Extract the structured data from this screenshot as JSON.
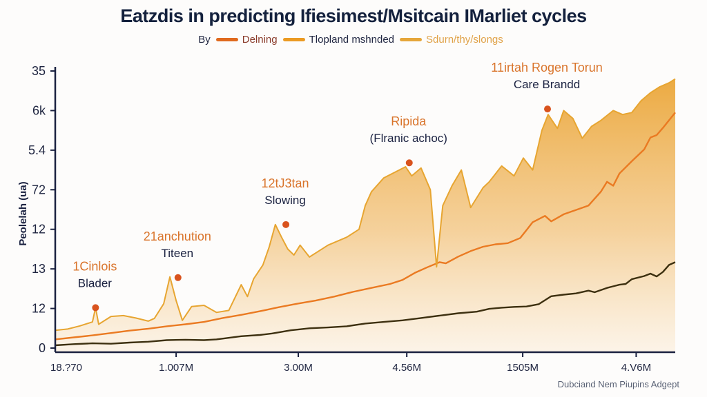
{
  "chart_data": {
    "type": "line",
    "title": "Eatzdis in predicting Ifiesimest/Msitcain IMarliet cycles",
    "legend_prefix": "By",
    "legend_position": "top-center",
    "ylabel": "Peolelah (ua)",
    "xlabel": "",
    "footer": "Dubciand Nem Piupins Adgept",
    "y_ticks": [
      "0",
      "12",
      "13",
      "12",
      "72",
      "5.4",
      "6k",
      "35"
    ],
    "y_range_index": [
      0,
      7
    ],
    "x_ticks": [
      {
        "t": 0.0,
        "label": "18.?70"
      },
      {
        "t": 0.195,
        "label": "1.007M"
      },
      {
        "t": 0.392,
        "label": "3.00M"
      },
      {
        "t": 0.567,
        "label": "4.56M"
      },
      {
        "t": 0.754,
        "label": "1505M"
      },
      {
        "t": 0.937,
        "label": "4.V6M"
      }
    ],
    "x_range": [
      0,
      1
    ],
    "grid": false,
    "series": [
      {
        "name": "Delning",
        "color": "#3d3010",
        "swatch": "#e06a1e",
        "filled": false,
        "points": [
          [
            0,
            0.07
          ],
          [
            0.03,
            0.1
          ],
          [
            0.06,
            0.12
          ],
          [
            0.09,
            0.11
          ],
          [
            0.12,
            0.14
          ],
          [
            0.15,
            0.16
          ],
          [
            0.18,
            0.2
          ],
          [
            0.21,
            0.21
          ],
          [
            0.24,
            0.2
          ],
          [
            0.26,
            0.22
          ],
          [
            0.3,
            0.3
          ],
          [
            0.33,
            0.33
          ],
          [
            0.35,
            0.37
          ],
          [
            0.38,
            0.45
          ],
          [
            0.41,
            0.5
          ],
          [
            0.44,
            0.52
          ],
          [
            0.47,
            0.55
          ],
          [
            0.5,
            0.62
          ],
          [
            0.53,
            0.66
          ],
          [
            0.56,
            0.7
          ],
          [
            0.59,
            0.76
          ],
          [
            0.62,
            0.82
          ],
          [
            0.65,
            0.88
          ],
          [
            0.68,
            0.92
          ],
          [
            0.7,
            0.99
          ],
          [
            0.72,
            1.02
          ],
          [
            0.74,
            1.04
          ],
          [
            0.76,
            1.05
          ],
          [
            0.78,
            1.11
          ],
          [
            0.8,
            1.31
          ],
          [
            0.82,
            1.35
          ],
          [
            0.84,
            1.38
          ],
          [
            0.86,
            1.45
          ],
          [
            0.87,
            1.41
          ],
          [
            0.89,
            1.52
          ],
          [
            0.91,
            1.6
          ],
          [
            0.92,
            1.62
          ],
          [
            0.93,
            1.74
          ],
          [
            0.95,
            1.82
          ],
          [
            0.96,
            1.88
          ],
          [
            0.97,
            1.81
          ],
          [
            0.98,
            1.92
          ],
          [
            0.99,
            2.1
          ],
          [
            1.0,
            2.17
          ]
        ]
      },
      {
        "name": "Tlopland mshnded",
        "color": "#ea7a22",
        "swatch": "#eb9a22",
        "filled": false,
        "points": [
          [
            0,
            0.22
          ],
          [
            0.03,
            0.27
          ],
          [
            0.06,
            0.32
          ],
          [
            0.09,
            0.38
          ],
          [
            0.12,
            0.44
          ],
          [
            0.15,
            0.49
          ],
          [
            0.18,
            0.55
          ],
          [
            0.21,
            0.6
          ],
          [
            0.24,
            0.66
          ],
          [
            0.27,
            0.76
          ],
          [
            0.3,
            0.84
          ],
          [
            0.33,
            0.93
          ],
          [
            0.36,
            1.03
          ],
          [
            0.39,
            1.12
          ],
          [
            0.42,
            1.2
          ],
          [
            0.45,
            1.3
          ],
          [
            0.48,
            1.42
          ],
          [
            0.51,
            1.52
          ],
          [
            0.54,
            1.62
          ],
          [
            0.56,
            1.72
          ],
          [
            0.58,
            1.9
          ],
          [
            0.6,
            2.04
          ],
          [
            0.62,
            2.17
          ],
          [
            0.63,
            2.14
          ],
          [
            0.65,
            2.31
          ],
          [
            0.67,
            2.45
          ],
          [
            0.69,
            2.56
          ],
          [
            0.71,
            2.62
          ],
          [
            0.73,
            2.65
          ],
          [
            0.75,
            2.78
          ],
          [
            0.76,
            2.98
          ],
          [
            0.77,
            3.18
          ],
          [
            0.79,
            3.34
          ],
          [
            0.8,
            3.2
          ],
          [
            0.82,
            3.38
          ],
          [
            0.84,
            3.49
          ],
          [
            0.86,
            3.6
          ],
          [
            0.88,
            3.95
          ],
          [
            0.89,
            4.2
          ],
          [
            0.9,
            4.1
          ],
          [
            0.91,
            4.41
          ],
          [
            0.93,
            4.72
          ],
          [
            0.95,
            5.02
          ],
          [
            0.96,
            5.32
          ],
          [
            0.97,
            5.38
          ],
          [
            0.98,
            5.56
          ],
          [
            1.0,
            5.95
          ]
        ]
      },
      {
        "name": "Sdurn/thy/slongs",
        "color": "#e7a531",
        "swatch": "#e6a63a",
        "filled": true,
        "points": [
          [
            0,
            0.45
          ],
          [
            0.02,
            0.48
          ],
          [
            0.04,
            0.56
          ],
          [
            0.06,
            0.66
          ],
          [
            0.065,
            1.02
          ],
          [
            0.07,
            0.6
          ],
          [
            0.09,
            0.8
          ],
          [
            0.11,
            0.82
          ],
          [
            0.13,
            0.76
          ],
          [
            0.15,
            0.68
          ],
          [
            0.16,
            0.75
          ],
          [
            0.175,
            1.12
          ],
          [
            0.185,
            1.8
          ],
          [
            0.195,
            1.2
          ],
          [
            0.205,
            0.7
          ],
          [
            0.22,
            1.05
          ],
          [
            0.24,
            1.08
          ],
          [
            0.26,
            0.9
          ],
          [
            0.28,
            0.95
          ],
          [
            0.3,
            1.6
          ],
          [
            0.31,
            1.3
          ],
          [
            0.32,
            1.75
          ],
          [
            0.335,
            2.1
          ],
          [
            0.345,
            2.55
          ],
          [
            0.355,
            3.12
          ],
          [
            0.365,
            2.8
          ],
          [
            0.375,
            2.5
          ],
          [
            0.385,
            2.35
          ],
          [
            0.395,
            2.6
          ],
          [
            0.41,
            2.3
          ],
          [
            0.425,
            2.45
          ],
          [
            0.44,
            2.6
          ],
          [
            0.455,
            2.7
          ],
          [
            0.47,
            2.8
          ],
          [
            0.49,
            3.0
          ],
          [
            0.5,
            3.6
          ],
          [
            0.51,
            3.95
          ],
          [
            0.53,
            4.3
          ],
          [
            0.565,
            4.58
          ],
          [
            0.575,
            4.35
          ],
          [
            0.59,
            4.55
          ],
          [
            0.605,
            4.0
          ],
          [
            0.615,
            2.05
          ],
          [
            0.625,
            3.6
          ],
          [
            0.64,
            4.1
          ],
          [
            0.655,
            4.5
          ],
          [
            0.67,
            3.55
          ],
          [
            0.69,
            4.05
          ],
          [
            0.7,
            4.2
          ],
          [
            0.72,
            4.6
          ],
          [
            0.74,
            4.35
          ],
          [
            0.755,
            4.8
          ],
          [
            0.77,
            4.5
          ],
          [
            0.785,
            5.5
          ],
          [
            0.795,
            5.9
          ],
          [
            0.81,
            5.55
          ],
          [
            0.82,
            6.0
          ],
          [
            0.835,
            5.8
          ],
          [
            0.85,
            5.3
          ],
          [
            0.865,
            5.6
          ],
          [
            0.88,
            5.75
          ],
          [
            0.9,
            6.0
          ],
          [
            0.915,
            5.9
          ],
          [
            0.93,
            5.95
          ],
          [
            0.945,
            6.25
          ],
          [
            0.96,
            6.45
          ],
          [
            0.975,
            6.6
          ],
          [
            0.99,
            6.7
          ],
          [
            1.0,
            6.8
          ]
        ]
      }
    ],
    "annotations": [
      {
        "t": 0.065,
        "v": 1.02,
        "label_top": "1Cinlois",
        "label_bottom": "Blader"
      },
      {
        "t": 0.198,
        "v": 1.78,
        "label_top": "21anchution",
        "label_bottom": "Titeen"
      },
      {
        "t": 0.372,
        "v": 3.12,
        "label_top": "12tJ3tan",
        "label_bottom": "Slowing"
      },
      {
        "t": 0.571,
        "v": 4.68,
        "label_top": "Ripida",
        "label_bottom": "(Flranic achoc)"
      },
      {
        "t": 0.794,
        "v": 6.04,
        "label_top": "11irtah Rogen Torun",
        "label_bottom": "Care Brandd"
      }
    ],
    "annotation_dot_color": "#d9531e"
  }
}
